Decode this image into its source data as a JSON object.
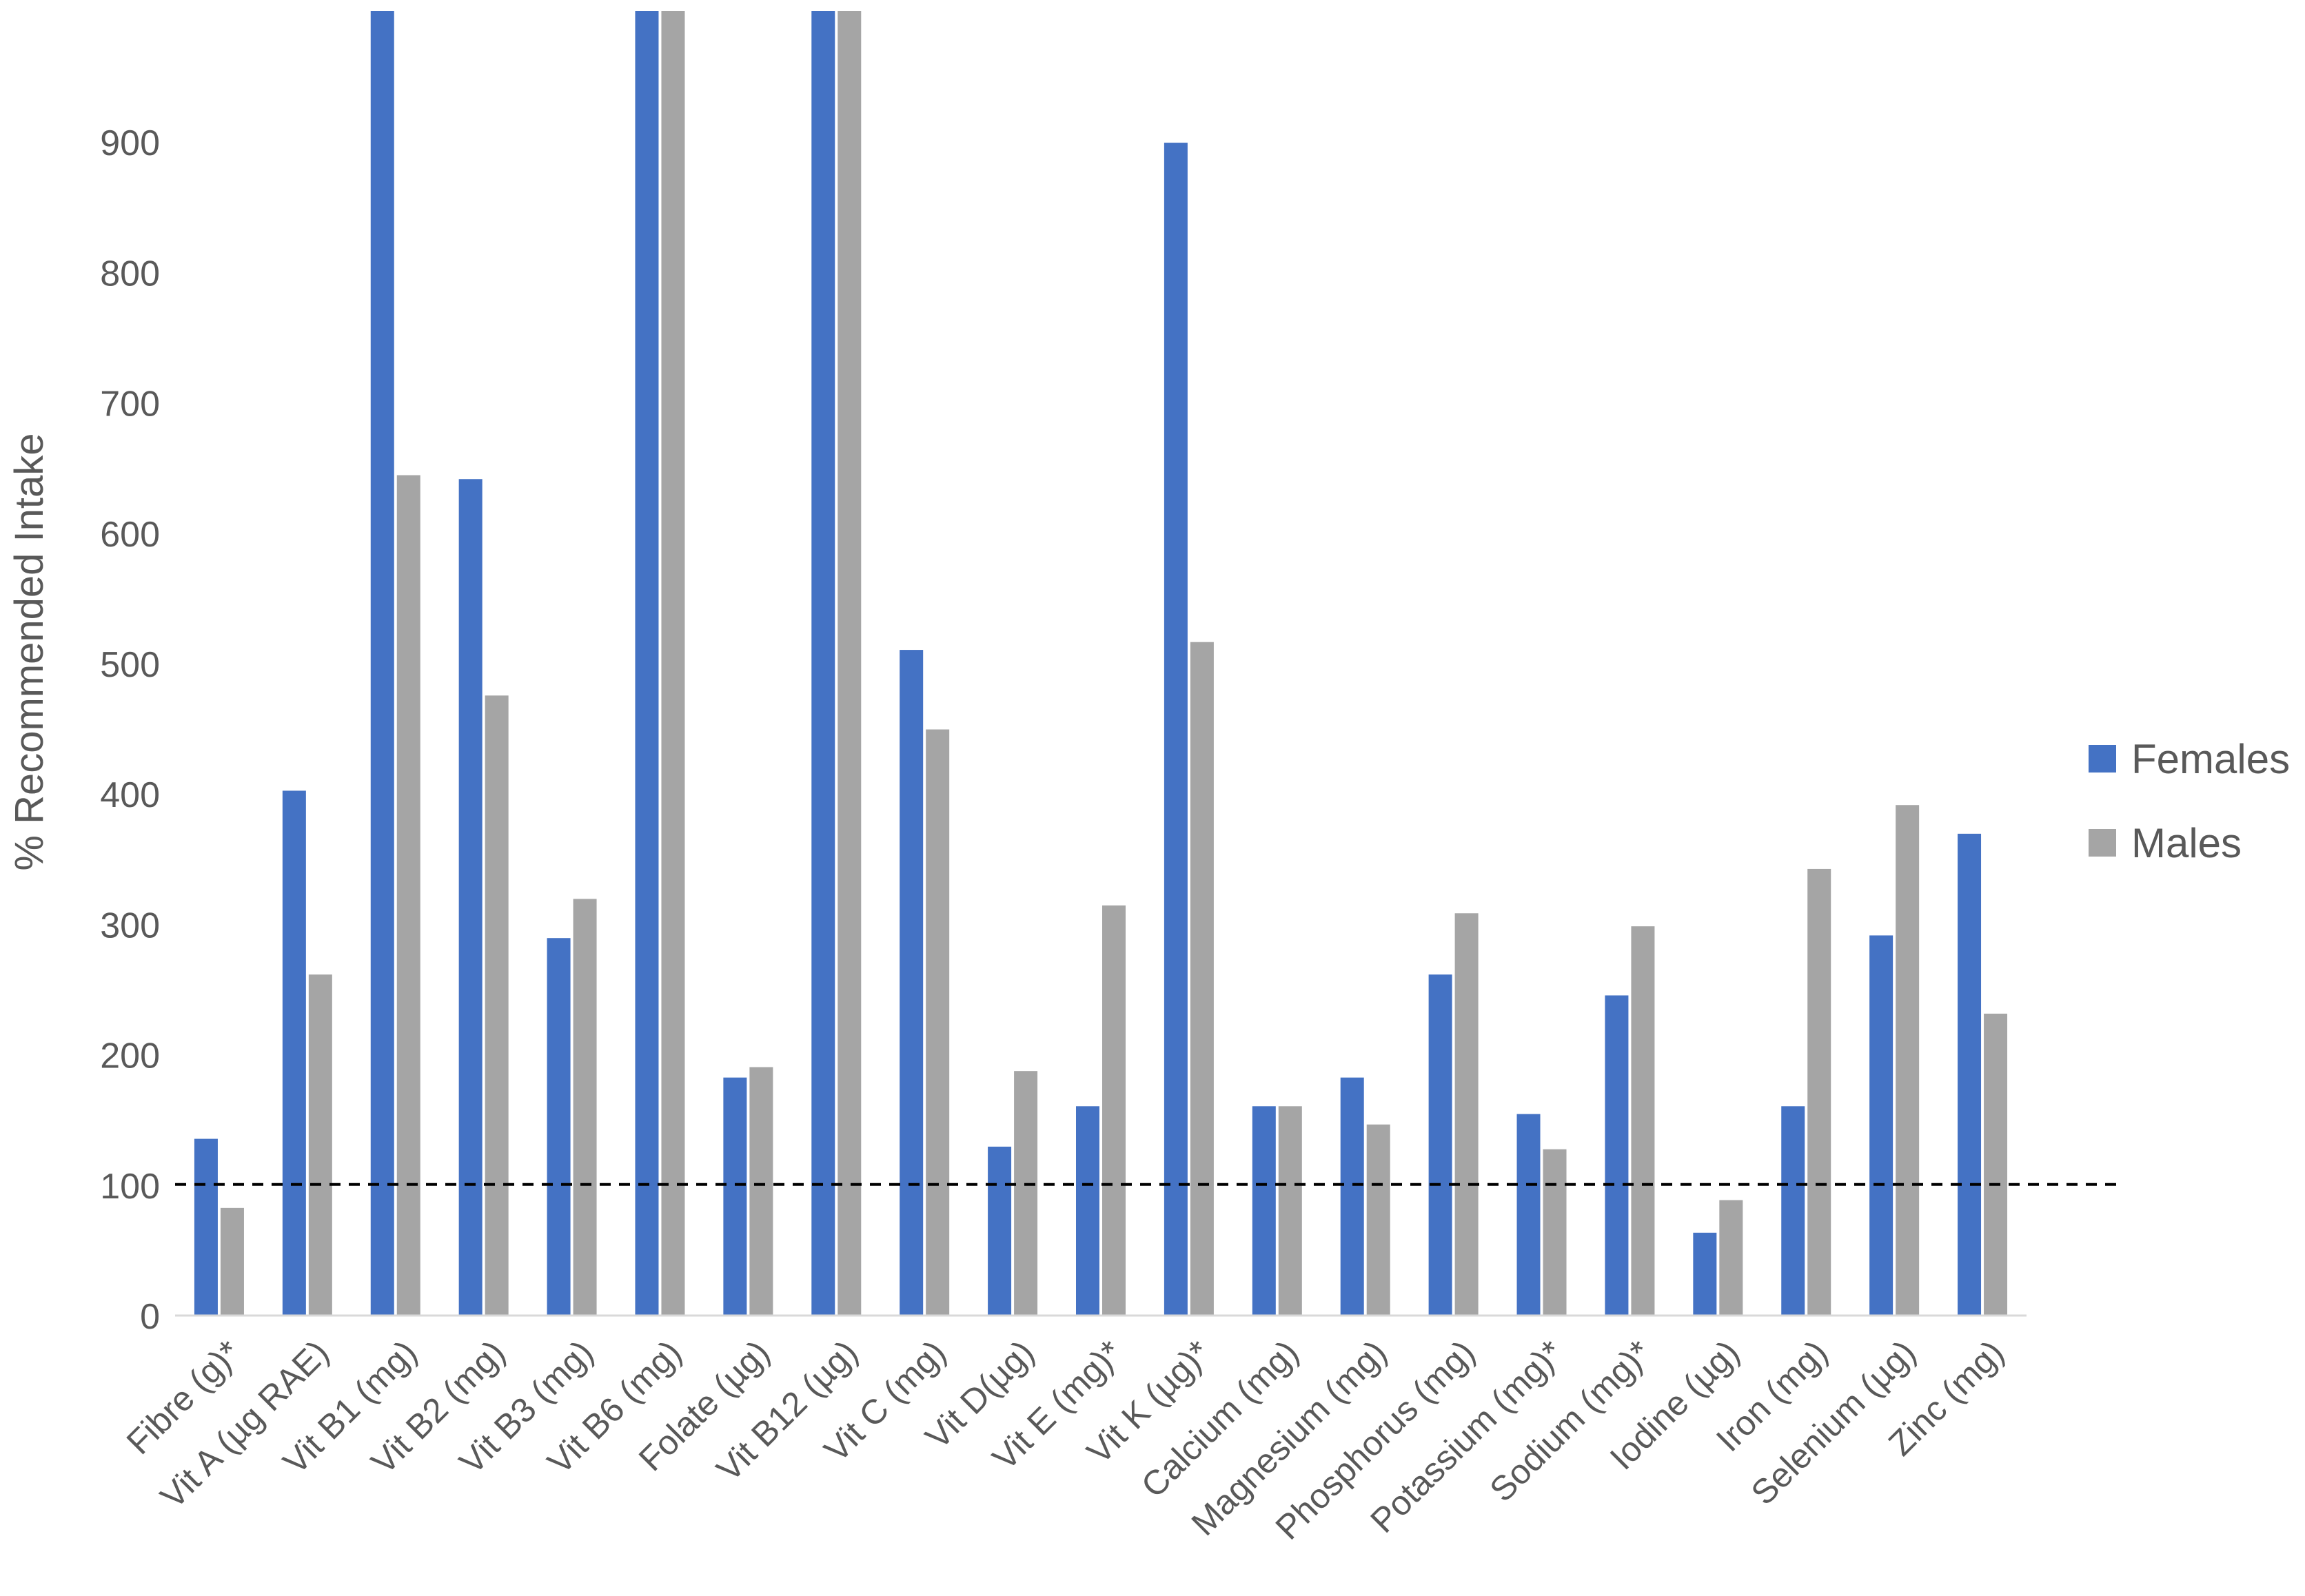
{
  "chart_data": {
    "type": "bar",
    "title": "",
    "xlabel": "",
    "ylabel": "% Recommended Intake",
    "ylim": [
      0,
      1000
    ],
    "yticks": [
      0,
      100,
      200,
      300,
      400,
      500,
      600,
      700,
      800,
      900
    ],
    "reference_line": 100,
    "grid": false,
    "legend_position": "right",
    "categories": [
      "Fibre (g)*",
      "Vit A (µg RAE)",
      "Vit B1 (mg)",
      "Vit B2 (mg)",
      "Vit B3 (mg)",
      "Vit B6 (mg)",
      "Folate (µg)",
      "Vit B12 (µg)",
      "Vit C (mg)",
      "Vit D(µg)",
      "Vit E (mg)*",
      "Vit K (µg)*",
      "Calcium (mg)",
      "Magnesium (mg)",
      "Phosphorus (mg)",
      "Potassium (mg)*",
      "Sodium (mg)*",
      "Iodine (µg)",
      "Iron (mg)",
      "Selenium (µg)",
      "Zinc (mg)"
    ],
    "series": [
      {
        "name": "Females",
        "color": "#4472C4",
        "values": [
          135,
          402,
          1000,
          641,
          289,
          1000,
          182,
          1000,
          510,
          129,
          160,
          899,
          160,
          182,
          261,
          154,
          245,
          63,
          160,
          291,
          369
        ]
      },
      {
        "name": "Males",
        "color": "#A5A5A5",
        "values": [
          82,
          261,
          644,
          475,
          319,
          1000,
          190,
          1000,
          449,
          187,
          314,
          516,
          160,
          146,
          308,
          127,
          298,
          88,
          342,
          391,
          231
        ]
      }
    ]
  }
}
